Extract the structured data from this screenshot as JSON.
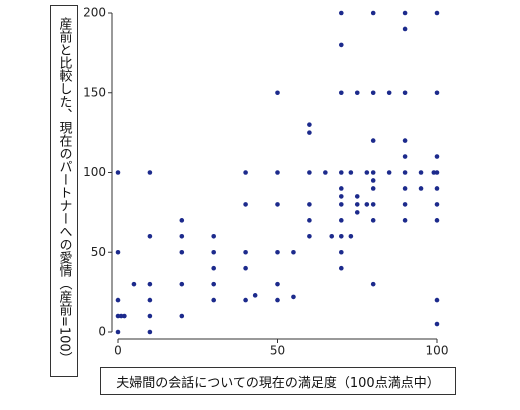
{
  "chart_data": {
    "type": "scatter",
    "xlabel": "夫婦間の会話についての現在の満足度（100点満点中）",
    "ylabel": "産前と比較した、現在のパートナーへの愛情（産前=100）",
    "color": "#1c2a8c",
    "xlim": [
      0,
      100
    ],
    "xticks": [
      0,
      50,
      100
    ],
    "ylim": [
      0,
      200
    ],
    "yticks": [
      0,
      50,
      100,
      150,
      200
    ],
    "x": [
      0,
      0,
      0,
      0,
      0,
      1,
      2,
      5,
      10,
      10,
      10,
      10,
      10,
      10,
      20,
      20,
      20,
      20,
      20,
      30,
      30,
      30,
      30,
      30,
      40,
      40,
      40,
      40,
      40,
      43,
      50,
      50,
      50,
      50,
      50,
      50,
      55,
      55,
      60,
      60,
      60,
      60,
      60,
      60,
      65,
      67,
      70,
      70,
      70,
      70,
      70,
      70,
      70,
      70,
      70,
      70,
      70,
      73,
      73,
      75,
      75,
      75,
      75,
      78,
      78,
      80,
      80,
      80,
      80,
      80,
      80,
      80,
      80,
      80,
      85,
      85,
      90,
      90,
      90,
      90,
      90,
      90,
      90,
      90,
      90,
      95,
      95,
      99,
      100,
      100,
      100,
      100,
      100,
      100,
      100,
      100,
      100
    ],
    "y": [
      100,
      50,
      20,
      10,
      0,
      10,
      10,
      30,
      100,
      60,
      30,
      20,
      10,
      0,
      70,
      60,
      50,
      30,
      10,
      60,
      50,
      40,
      30,
      20,
      100,
      80,
      50,
      40,
      20,
      23,
      150,
      100,
      80,
      50,
      30,
      20,
      50,
      22,
      130,
      125,
      100,
      80,
      70,
      60,
      100,
      60,
      200,
      180,
      150,
      100,
      90,
      85,
      80,
      70,
      60,
      50,
      40,
      100,
      60,
      150,
      85,
      80,
      75,
      80,
      100,
      200,
      150,
      120,
      100,
      95,
      90,
      80,
      70,
      30,
      150,
      100,
      200,
      190,
      150,
      120,
      110,
      100,
      90,
      80,
      70,
      100,
      90,
      100,
      200,
      150,
      110,
      100,
      90,
      80,
      70,
      20,
      5
    ]
  }
}
